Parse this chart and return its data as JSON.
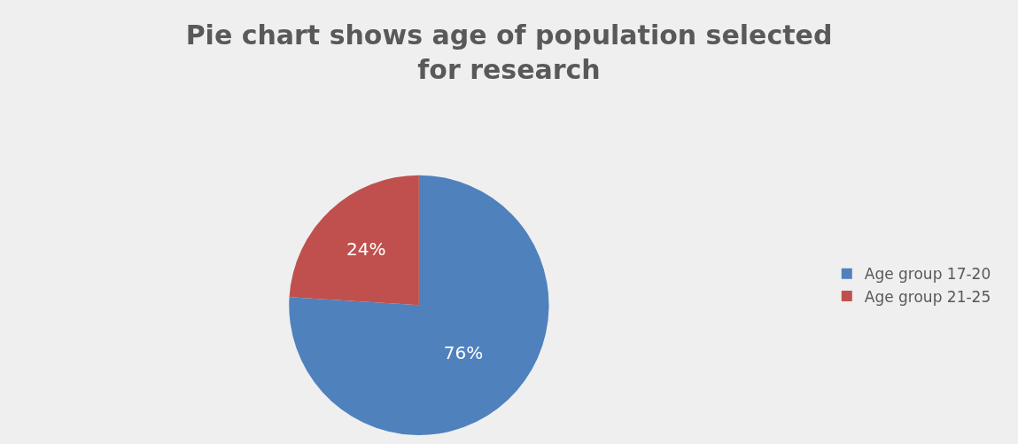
{
  "chart_data": {
    "type": "pie",
    "title": "Pie chart shows age of population selected for research",
    "categories": [
      "Age group 17-20",
      "Age group 21-25"
    ],
    "values": [
      76,
      24
    ],
    "colors": [
      "#4f81bd",
      "#c0504d"
    ],
    "value_labels": [
      "76%",
      "24%"
    ],
    "legend": "right"
  }
}
